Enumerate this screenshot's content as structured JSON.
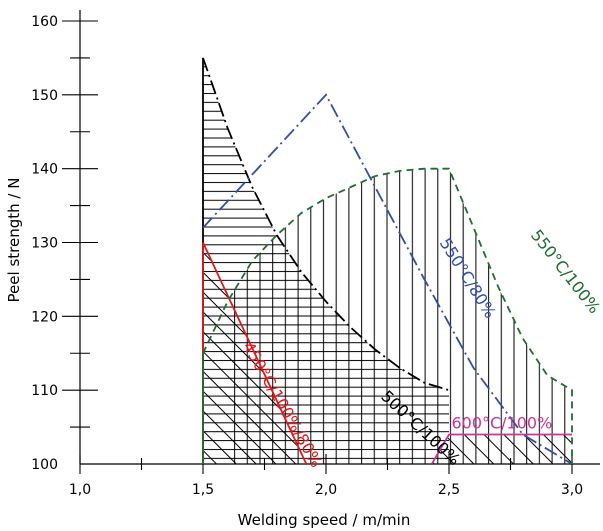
{
  "chart_data": {
    "type": "line",
    "title": "",
    "xlabel": "Welding speed / m/min",
    "ylabel": "Peel strength / N",
    "xlim": [
      1.0,
      3.0
    ],
    "ylim": [
      100,
      160
    ],
    "xticks": [
      "1,0",
      "1,5",
      "2,0",
      "2,5",
      "3,0"
    ],
    "xtick_values": [
      1.0,
      1.5,
      2.0,
      2.5,
      3.0
    ],
    "yticks": [
      "100",
      "110",
      "120",
      "130",
      "140",
      "150",
      "160"
    ],
    "ytick_values": [
      100,
      110,
      120,
      130,
      140,
      150,
      160
    ],
    "grid": false,
    "legend": "none",
    "series": [
      {
        "name": "500°C/100%",
        "color": "#000000",
        "dash": "dash-dot",
        "label_pos": [
          2.22,
          109
        ],
        "label_angle": 43,
        "points": [
          [
            1.5,
            155
          ],
          [
            1.6,
            145.5
          ],
          [
            1.7,
            137.5
          ],
          [
            1.8,
            131
          ],
          [
            1.9,
            126
          ],
          [
            2.0,
            122
          ],
          [
            2.1,
            118.5
          ],
          [
            2.2,
            115.5
          ],
          [
            2.3,
            113
          ],
          [
            2.4,
            111
          ],
          [
            2.5,
            110
          ]
        ],
        "fill": {
          "pattern": "horizontal",
          "close_to": 100,
          "x_max": 2.5
        }
      },
      {
        "name": "450°C/100%/80%",
        "color": "#e0191b",
        "dash": "solid",
        "label_pos": [
          1.66,
          116
        ],
        "label_angle": 60,
        "points": [
          [
            1.5,
            130
          ],
          [
            1.92,
            100
          ]
        ],
        "fill": {
          "pattern": "diagonal",
          "close_to": 100
        }
      },
      {
        "name": "550°C/80%",
        "color": "#2f4fa8",
        "dash": "dash-dot",
        "label_pos": [
          2.46,
          130
        ],
        "label_angle": 58,
        "points": [
          [
            1.5,
            132
          ],
          [
            2.0,
            150
          ],
          [
            2.2,
            137.5
          ],
          [
            2.4,
            125
          ],
          [
            2.6,
            113
          ],
          [
            2.8,
            104
          ],
          [
            3.0,
            100
          ]
        ]
      },
      {
        "name": "550°C/100%",
        "color": "#1e6e2d",
        "dash": "dash",
        "label_pos": [
          2.83,
          131
        ],
        "label_angle": 52,
        "points": [
          [
            1.5,
            115
          ],
          [
            1.6,
            122
          ],
          [
            1.7,
            127.5
          ],
          [
            1.8,
            131
          ],
          [
            1.9,
            134
          ],
          [
            2.0,
            136
          ],
          [
            2.1,
            137.5
          ],
          [
            2.2,
            139
          ],
          [
            2.3,
            139.7
          ],
          [
            2.4,
            140
          ],
          [
            2.5,
            140
          ],
          [
            2.6,
            132
          ],
          [
            2.7,
            124
          ],
          [
            2.8,
            117
          ],
          [
            2.9,
            112
          ],
          [
            3.0,
            110
          ],
          [
            3.0,
            100
          ]
        ],
        "fill": {
          "pattern": "vertical",
          "close_to": 100,
          "x_min": 1.72,
          "x_max": 2.96
        }
      },
      {
        "name": "600°C/100%",
        "color": "#cc3399",
        "dash": "solid",
        "label_pos": [
          2.51,
          104.8
        ],
        "label_angle": 0,
        "points": [
          [
            2.43,
            100
          ],
          [
            2.5,
            104
          ],
          [
            3.0,
            104
          ]
        ],
        "fill": {
          "pattern": "diagonal",
          "close_to": 100
        }
      }
    ]
  }
}
